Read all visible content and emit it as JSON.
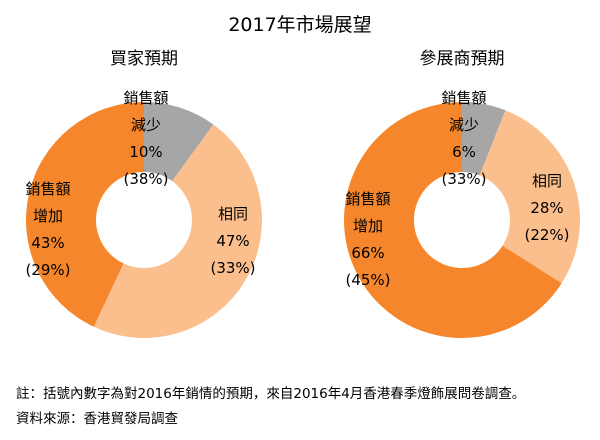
{
  "title": "2017年市場展望",
  "colors": {
    "increase": "#F5862B",
    "same": "#FBBE8D",
    "decrease": "#A6A6A6"
  },
  "footer": {
    "note": "註：括號內數字為對2016年銷情的預期，來自2016年4月香港春季燈飾展問卷調查。",
    "source": "資料來源：香港貿發局調查"
  },
  "chart_data": [
    {
      "type": "pie",
      "title": "買家預期",
      "legend_position": "on-chart",
      "slices": [
        {
          "name": "銷售額減少",
          "value": 10,
          "value_2016": 38,
          "color_key": "decrease",
          "label_lines": [
            "銷售額",
            "減少",
            "10%",
            "(38%)"
          ]
        },
        {
          "name": "相同",
          "value": 47,
          "value_2016": 33,
          "color_key": "same",
          "label_lines": [
            "相同",
            "47%",
            "(33%)"
          ]
        },
        {
          "name": "銷售額增加",
          "value": 43,
          "value_2016": 29,
          "color_key": "increase",
          "label_lines": [
            "銷售額",
            "增加",
            "43%",
            "(29%)"
          ]
        }
      ]
    },
    {
      "type": "pie",
      "title": "參展商預期",
      "legend_position": "on-chart",
      "slices": [
        {
          "name": "銷售額減少",
          "value": 6,
          "value_2016": 33,
          "color_key": "decrease",
          "label_lines": [
            "銷售額",
            "減少",
            "6%",
            "(33%)"
          ]
        },
        {
          "name": "相同",
          "value": 28,
          "value_2016": 22,
          "color_key": "same",
          "label_lines": [
            "相同",
            "28%",
            "(22%)"
          ]
        },
        {
          "name": "銷售額增加",
          "value": 66,
          "value_2016": 45,
          "color_key": "increase",
          "label_lines": [
            "銷售額",
            "增加",
            "66%",
            "(45%)"
          ]
        }
      ]
    }
  ]
}
